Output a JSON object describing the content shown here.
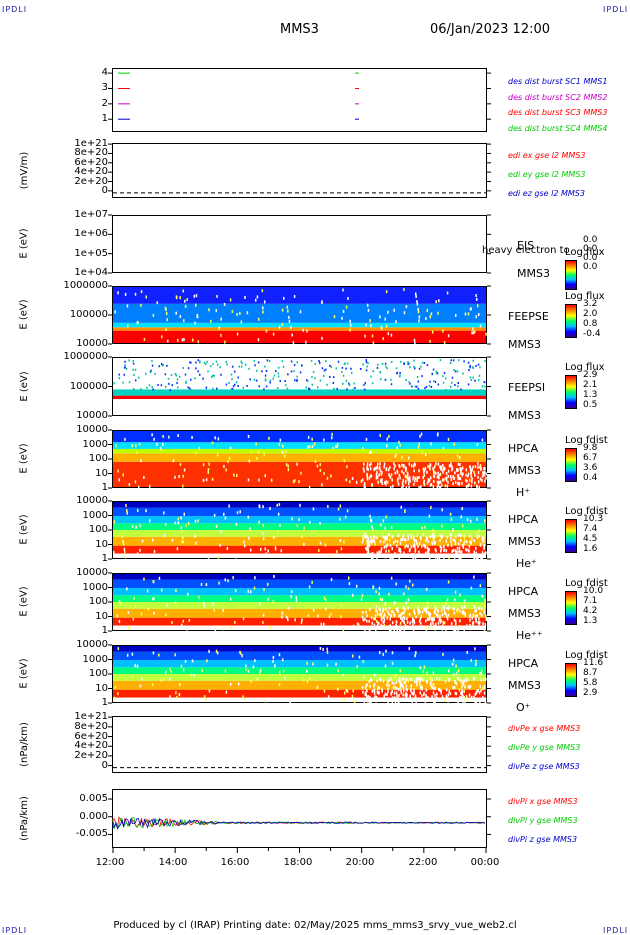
{
  "header": {
    "corner_left_top": "IPDLI",
    "corner_right_top": "IPDLI",
    "corner_left_bottom": "IPDLI",
    "corner_right_bottom": "IPDLI",
    "spacecraft": "MMS3",
    "datetime": "06/Jan/2023 12:00"
  },
  "footer": "Produced by cl (IRAP)   Printing date: 02/May/2025   mms_mms3_srvy_vue_web2.cl",
  "colors": {
    "red": "#ff0000",
    "green": "#00cc00",
    "blue": "#0000cc",
    "magenta": "#cc00cc"
  },
  "chart_data": [
    {
      "type": "line",
      "name": "burst",
      "yticks": [
        "4",
        "3",
        "2",
        "1"
      ],
      "legend": [
        "des dist burst SC1 MMS1",
        "des dist burst SC2 MMS2",
        "des dist burst SC3 MMS3",
        "des dist burst SC4 MMS4"
      ],
      "legend_colors": [
        "#0000cc",
        "#cc00cc",
        "#ff0000",
        "#00cc00"
      ],
      "markers": [
        {
          "y": 4,
          "color": "#00cc00"
        },
        {
          "y": 3,
          "color": "#ff0000"
        },
        {
          "y": 2,
          "color": "#cc00cc"
        },
        {
          "y": 1,
          "color": "#0000cc"
        }
      ]
    },
    {
      "type": "line",
      "name": "edi",
      "ylabel": "(mV/m)",
      "yticks": [
        "1e+21",
        "8e+20",
        "6e+20",
        "4e+20",
        "2e+20",
        "0"
      ],
      "legend": [
        "edi ex gse l2 MMS3",
        "edi ey gse l2 MMS3",
        "edi ez gse l2 MMS3"
      ],
      "legend_colors": [
        "#ff0000",
        "#00cc00",
        "#0000cc"
      ]
    },
    {
      "type": "heatmap",
      "name": "eis",
      "ylabel": "E (eV)",
      "yticks": [
        "1e+07",
        "1e+06",
        "1e+05",
        "1e+04"
      ],
      "inst": [
        "EIS",
        "MMS3"
      ],
      "overlay": "heavy electron to",
      "cb_title": "Log flux",
      "cb_values": [
        "0.0",
        "0.0",
        "0.0",
        "0.0"
      ]
    },
    {
      "type": "heatmap",
      "name": "feepse",
      "ylabel": "E (eV)",
      "yticks": [
        "1000000",
        "100000",
        "10000"
      ],
      "inst": [
        "FEEPSE",
        "MMS3"
      ],
      "cb_title": "Log flux",
      "cb_values": [
        "3.2",
        "2.0",
        "0.8",
        "-0.4"
      ]
    },
    {
      "type": "heatmap",
      "name": "feepsi",
      "ylabel": "E (eV)",
      "yticks": [
        "1000000",
        "100000",
        "10000"
      ],
      "inst": [
        "FEEPSI",
        "MMS3"
      ],
      "cb_title": "Log flux",
      "cb_values": [
        "2.9",
        "2.1",
        "1.3",
        "0.5"
      ]
    },
    {
      "type": "heatmap",
      "name": "hpca-h",
      "ylabel": "E (eV)",
      "yticks": [
        "10000",
        "1000",
        "100",
        "10",
        "1"
      ],
      "inst": [
        "HPCA",
        "MMS3",
        "H⁺"
      ],
      "cb_title": "Log fdist",
      "cb_values": [
        "9.8",
        "6.7",
        "3.6",
        "0.4"
      ]
    },
    {
      "type": "heatmap",
      "name": "hpca-he",
      "ylabel": "E (eV)",
      "yticks": [
        "10000",
        "1000",
        "100",
        "10",
        "1"
      ],
      "inst": [
        "HPCA",
        "MMS3",
        "He⁺"
      ],
      "cb_title": "Log fdist",
      "cb_values": [
        "10.3",
        "7.4",
        "4.5",
        "1.6"
      ]
    },
    {
      "type": "heatmap",
      "name": "hpca-hepp",
      "ylabel": "E (eV)",
      "yticks": [
        "10000",
        "1000",
        "100",
        "10",
        "1"
      ],
      "inst": [
        "HPCA",
        "MMS3",
        "He⁺⁺"
      ],
      "cb_title": "Log fdist",
      "cb_values": [
        "10.0",
        "7.1",
        "4.2",
        "1.3"
      ]
    },
    {
      "type": "heatmap",
      "name": "hpca-o",
      "ylabel": "E (eV)",
      "yticks": [
        "10000",
        "1000",
        "100",
        "10",
        "1"
      ],
      "inst": [
        "HPCA",
        "MMS3",
        "O⁺"
      ],
      "cb_title": "Log fdist",
      "cb_values": [
        "11.6",
        "8.7",
        "5.8",
        "2.9"
      ]
    },
    {
      "type": "line",
      "name": "divpe",
      "ylabel": "(nPa/km)",
      "yticks": [
        "1e+21",
        "8e+20",
        "6e+20",
        "4e+20",
        "2e+20",
        "0"
      ],
      "legend": [
        "divPe x gse MMS3",
        "divPe y gse MMS3",
        "divPe z gse MMS3"
      ],
      "legend_colors": [
        "#ff0000",
        "#00cc00",
        "#0000cc"
      ]
    },
    {
      "type": "line",
      "name": "divpi",
      "ylabel": "(nPa/km)",
      "yticks": [
        "0.005",
        "0.000",
        "-0.005"
      ],
      "legend": [
        "divPi x gse MMS3",
        "divPi y gse MMS3",
        "divPi z gse MMS3"
      ],
      "legend_colors": [
        "#ff0000",
        "#00cc00",
        "#0000cc"
      ]
    }
  ],
  "xaxis": {
    "ticks": [
      "12:00",
      "14:00",
      "16:00",
      "18:00",
      "20:00",
      "22:00",
      "00:00"
    ]
  }
}
